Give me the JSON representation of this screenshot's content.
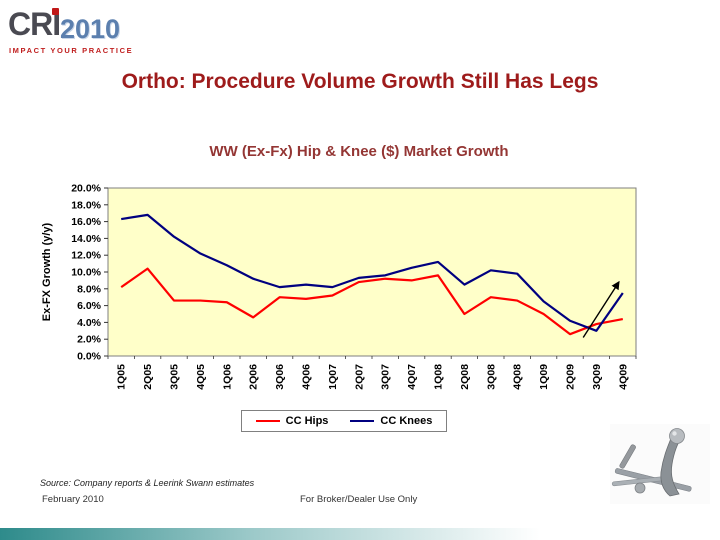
{
  "slide": {
    "logo": {
      "cri": "CRI",
      "year": "2010",
      "tagline": "IMPACT YOUR PRACTICE"
    },
    "title": "Ortho: Procedure Volume Growth Still Has Legs",
    "footer": {
      "source": "Source: Company reports & Leerink Swann estimates",
      "date": "February 2010",
      "disclaimer": "For Broker/Dealer Use Only"
    }
  },
  "chart_data": {
    "type": "line",
    "title": "WW (Ex-Fx) Hip & Knee ($) Market Growth",
    "ylabel": "Ex-FX Growth (y/y)",
    "ylim": [
      0,
      20
    ],
    "ytick_step": 2,
    "ytick_format": "0.0%",
    "grid": false,
    "plot_bg": "#FFFFC9",
    "legend_position": "bottom",
    "categories": [
      "1Q05",
      "2Q05",
      "3Q05",
      "4Q05",
      "1Q06",
      "2Q06",
      "3Q06",
      "4Q06",
      "1Q07",
      "2Q07",
      "3Q07",
      "4Q07",
      "1Q08",
      "2Q08",
      "3Q08",
      "4Q08",
      "1Q09",
      "2Q09",
      "3Q09",
      "4Q09"
    ],
    "series": [
      {
        "name": "CC Hips",
        "color": "#FF0000",
        "values": [
          8.2,
          10.4,
          6.6,
          6.6,
          6.4,
          4.6,
          7.0,
          6.8,
          7.2,
          8.8,
          9.2,
          9.0,
          9.6,
          5.0,
          7.0,
          6.6,
          5.0,
          2.6,
          3.8,
          4.4
        ]
      },
      {
        "name": "CC Knees",
        "color": "#000080",
        "values": [
          16.3,
          16.8,
          14.2,
          12.2,
          10.8,
          9.2,
          8.2,
          8.5,
          8.2,
          9.3,
          9.6,
          10.5,
          11.2,
          8.5,
          10.2,
          9.8,
          6.5,
          4.2,
          3.0,
          7.5
        ]
      }
    ],
    "annotations": [
      {
        "type": "arrow",
        "from": [
          17.5,
          2.2
        ],
        "to": [
          18.85,
          8.8
        ]
      }
    ]
  }
}
